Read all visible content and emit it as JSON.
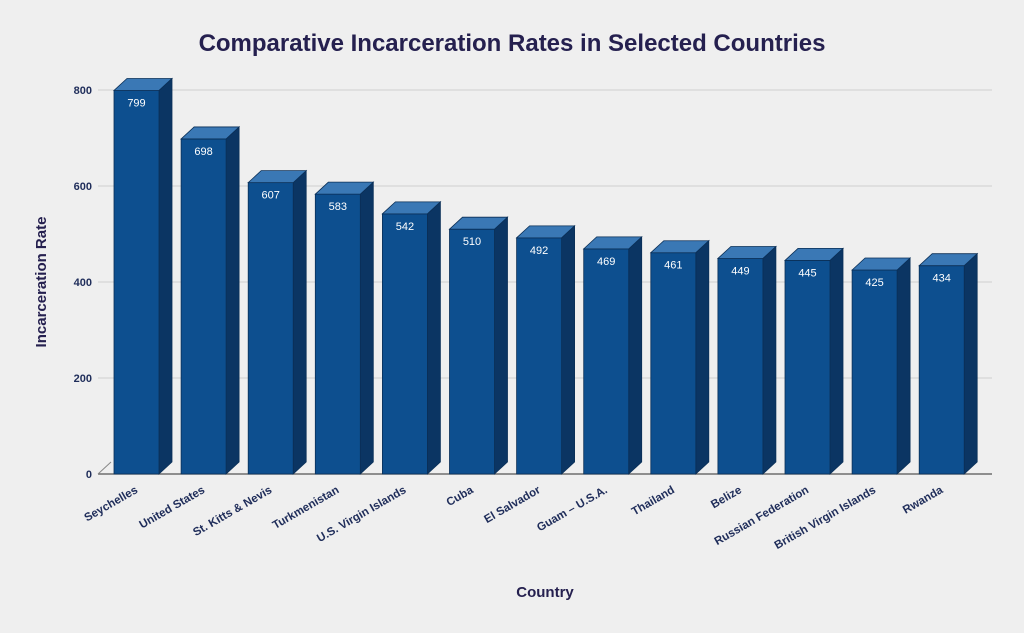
{
  "chart_data": {
    "type": "bar",
    "title": "Comparative Incarceration Rates in Selected Countries",
    "xlabel": "Country",
    "ylabel": "Incarceration Rate",
    "categories": [
      "Seychelles",
      "United States",
      "St. Kitts & Nevis",
      "Turkmenistan",
      "U.S. Virgin Islands",
      "Cuba",
      "El Salvador",
      "Guam – U.S.A.",
      "Thailand",
      "Belize",
      "Russian Federation",
      "British Virgin Islands",
      "Rwanda"
    ],
    "values": [
      799,
      698,
      607,
      583,
      542,
      510,
      492,
      469,
      461,
      449,
      445,
      425,
      434
    ],
    "ylim": [
      0,
      800
    ],
    "yticks": [
      0,
      200,
      400,
      600,
      800
    ],
    "grid": true,
    "colors": {
      "bar_front": "#0d4f8f",
      "bar_side": "#0b3563",
      "bar_top": "#3a78b5",
      "bar_edge": "#0a2f57",
      "title": "#25204f",
      "axis_text": "#1f2d5a",
      "value_label": "#ffffff",
      "grid": "#cfcfcf"
    }
  }
}
